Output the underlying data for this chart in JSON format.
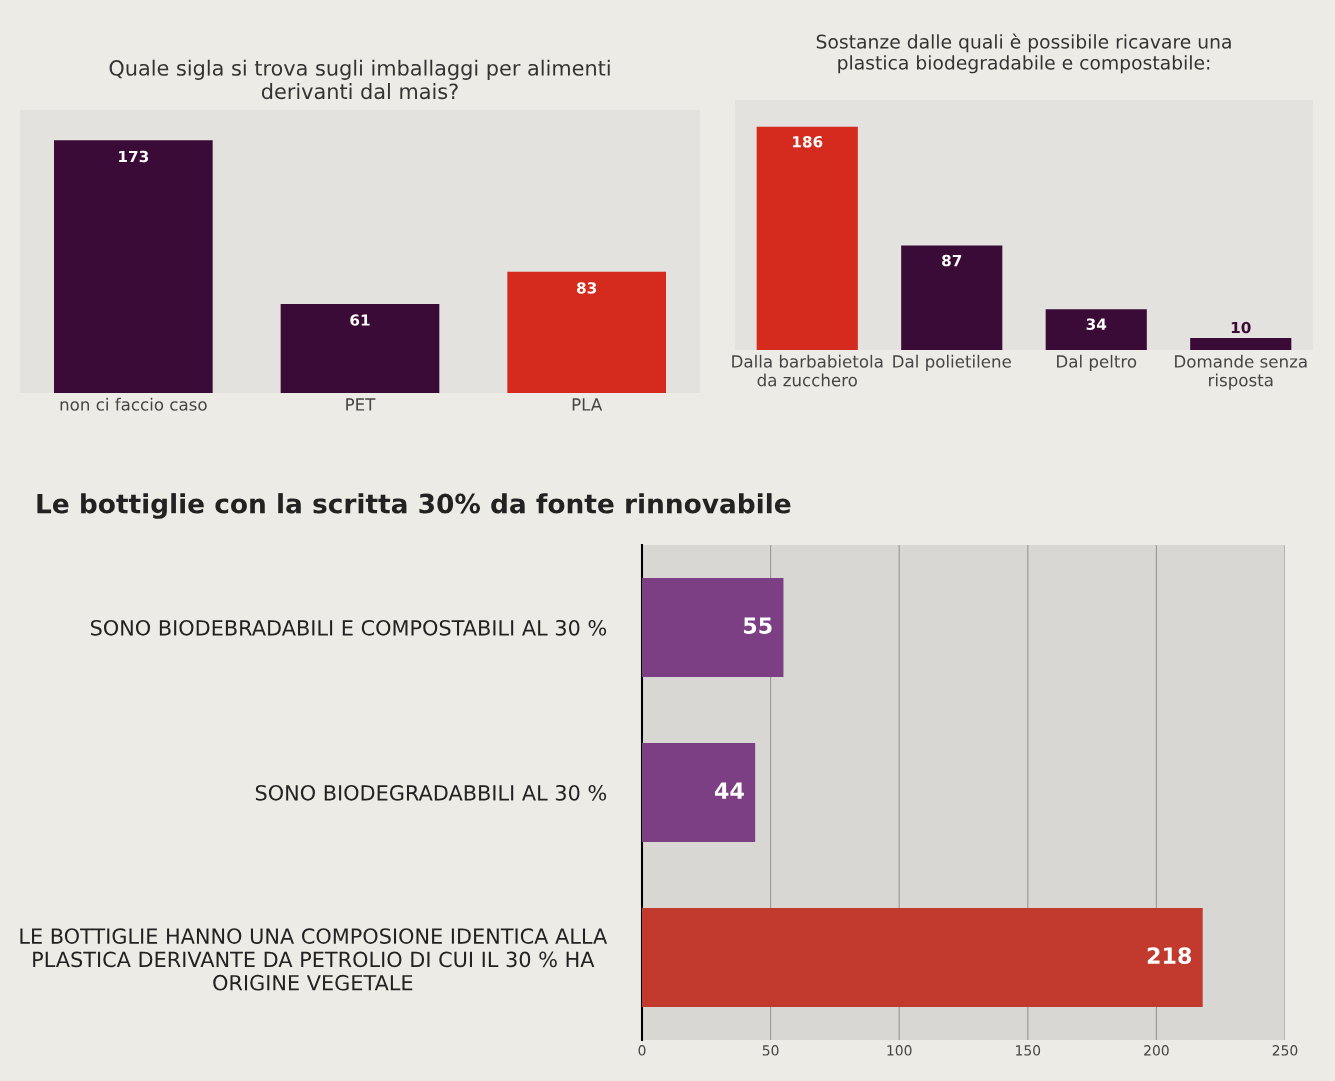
{
  "chart_data": [
    {
      "type": "bar",
      "title": "Quale sigla si trova sugli imballaggi per alimenti\nderivanti dal mais?",
      "categories": [
        "non ci faccio caso",
        "PET",
        "PLA"
      ],
      "values": [
        173,
        61,
        83
      ],
      "colors": [
        "#3b0b37",
        "#3b0b37",
        "#d42b1e"
      ],
      "data_labels": true,
      "tick_labels": "x",
      "grid": false
    },
    {
      "type": "bar",
      "title": "Sostanze dalle quali è possibile ricavare una\nplastica biodegradabile e compostabile:",
      "categories": [
        "Dalla barbabietola\nda zucchero",
        "Dal polietilene",
        "Dal peltro",
        "Domande senza\nrisposta"
      ],
      "values": [
        186,
        87,
        34,
        10
      ],
      "colors": [
        "#d42b1e",
        "#3b0b37",
        "#3b0b37",
        "#3b0b37"
      ],
      "data_labels": true,
      "tick_labels": "x",
      "grid": false
    },
    {
      "type": "bar",
      "orientation": "horizontal",
      "title": "Le bottiglie con la scritta 30% da fonte rinnovabile",
      "categories": [
        "SONO BIODEBRADABILI E COMPOSTABILI AL 30 %",
        "SONO BIODEGRADABBILI AL 30 %",
        "LE BOTTIGLIE HANNO UNA COMPOSIONE IDENTICA ALLA\nPLASTICA DERIVANTE DA PETROLIO DI CUI IL 30 % HA\nORIGINE VEGETALE"
      ],
      "values": [
        55,
        44,
        218
      ],
      "colors": [
        "#7d3f84",
        "#7d3f84",
        "#c23a2e"
      ],
      "xlim": [
        0,
        250
      ],
      "xticks": [
        0,
        50,
        100,
        150,
        200,
        250
      ],
      "data_labels": true,
      "grid": "x"
    }
  ]
}
